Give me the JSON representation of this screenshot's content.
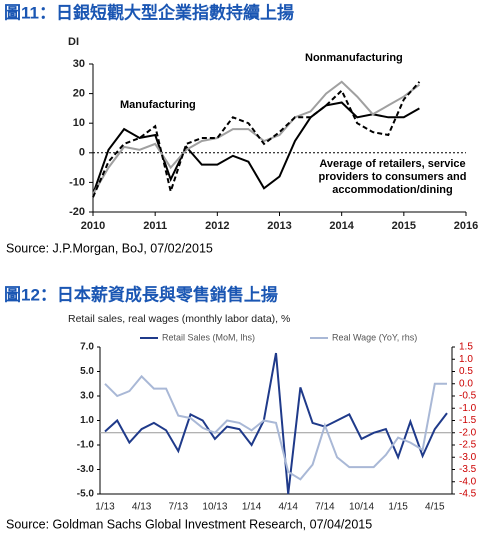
{
  "chart_data": [
    {
      "type": "line",
      "title": "圖11：日銀短觀大型企業指數持續上揚",
      "ylabel": "DI",
      "source": "Source: J.P.Morgan, BoJ, 07/02/2015",
      "x": [
        2010,
        2010.25,
        2010.5,
        2010.75,
        2011,
        2011.25,
        2011.5,
        2011.75,
        2012,
        2012.25,
        2012.5,
        2012.75,
        2013,
        2013.25,
        2013.5,
        2013.75,
        2014,
        2014.25,
        2014.5,
        2014.75,
        2015,
        2015.25
      ],
      "xlim": [
        2010,
        2016
      ],
      "xticks": [
        2010,
        2011,
        2012,
        2013,
        2014,
        2015,
        2016
      ],
      "ylim": [
        -20,
        30
      ],
      "yticks": [
        -20,
        -10,
        0,
        10,
        20,
        30
      ],
      "series": [
        {
          "name": "Manufacturing",
          "color": "#000000",
          "line_style": "solid",
          "values": [
            -14,
            1,
            8,
            5,
            6,
            -9,
            2,
            -4,
            -4,
            -1,
            -3,
            -12,
            -8,
            4,
            12,
            16,
            17,
            12,
            13,
            12,
            12,
            15
          ]
        },
        {
          "name": "Nonmanufacturing",
          "color": "#a0a0a0",
          "line_style": "solid",
          "values": [
            -14,
            -5,
            2,
            1,
            3,
            -5,
            1,
            4,
            5,
            8,
            8,
            4,
            6,
            12,
            14,
            20,
            24,
            19,
            13,
            16,
            19,
            23
          ]
        },
        {
          "name": "Average of retailers, service providers to consumers and accommodation/dining",
          "color": "#000000",
          "line_style": "dashed",
          "values": [
            -15,
            -3,
            3,
            5,
            9,
            -13,
            3,
            5,
            5,
            12,
            10,
            3,
            7,
            12,
            12,
            16,
            21,
            10,
            7,
            6,
            18,
            24
          ]
        }
      ]
    },
    {
      "type": "line",
      "title": "圖12：日本薪資成長與零售銷售上揚",
      "subtitle": "Retail sales, real wages (monthly labor data), %",
      "source": "Source: Goldman Sachs Global Investment Research, 07/04/2015",
      "categories": [
        "1/13",
        null,
        null,
        "4/13",
        null,
        null,
        "7/13",
        null,
        null,
        "10/13",
        null,
        null,
        "1/14",
        null,
        null,
        "4/14",
        null,
        null,
        "7/14",
        null,
        null,
        "10/14",
        null,
        null,
        "1/15",
        null,
        null,
        "4/15",
        null
      ],
      "ylim": [
        -5,
        7
      ],
      "yticks": [
        {
          "value": -5,
          "label": "-5.0"
        },
        {
          "value": -3,
          "label": "-3.0"
        },
        {
          "value": -1,
          "label": "-1.0"
        },
        {
          "value": 1,
          "label": "1.0"
        },
        {
          "value": 3,
          "label": "3.0"
        },
        {
          "value": 5,
          "label": "5.0"
        },
        {
          "value": 7,
          "label": "7.0"
        }
      ],
      "y2lim": [
        -4.5,
        1.5
      ],
      "y2ticks": [
        1.5,
        {
          "value": 1,
          "label": "1.0"
        },
        0.5,
        {
          "value": 0,
          "label": "0.0"
        },
        -0.5,
        {
          "value": -1,
          "label": "-1.0"
        },
        -1.5,
        {
          "value": -2,
          "label": "-2.0"
        },
        -2.5,
        {
          "value": -3,
          "label": "-3.0"
        },
        -3.5,
        {
          "value": -4,
          "label": "-4.0"
        },
        -4.5
      ],
      "y2tick_color": "#cc0000",
      "series": [
        {
          "name": "Retail Sales (MoM, lhs)",
          "color": "#1f3a8a",
          "axis": "y",
          "values": [
            0.1,
            1.0,
            -0.8,
            0.3,
            0.8,
            0.2,
            -1.5,
            1.5,
            1.0,
            -0.5,
            0.5,
            0.3,
            -1.0,
            1.0,
            6.5,
            -5.0,
            3.7,
            0.8,
            0.5,
            1.0,
            1.5,
            -0.5,
            0.0,
            0.3,
            -2.0,
            0.9,
            -1.9,
            0.3,
            1.6
          ]
        },
        {
          "name": "Real Wage (YoY, rhs)",
          "color": "#a9b8d6",
          "axis": "y2",
          "values": [
            0.0,
            -0.5,
            -0.3,
            0.3,
            -0.2,
            -0.2,
            -1.3,
            -1.4,
            -1.8,
            -2.0,
            -1.5,
            -1.6,
            -1.9,
            -1.5,
            -1.6,
            -3.6,
            -3.9,
            -3.3,
            -1.7,
            -3.0,
            -3.4,
            -3.4,
            -3.4,
            -2.9,
            -2.2,
            -2.4,
            -2.7,
            0.0,
            0.0
          ]
        }
      ]
    }
  ]
}
